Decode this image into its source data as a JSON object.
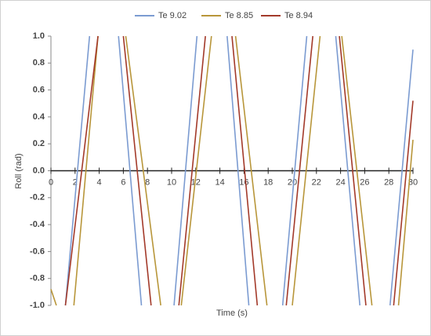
{
  "chart_data": {
    "type": "line",
    "xlabel": "Time (s)",
    "ylabel": "Roll (rad)",
    "xlim": [
      0,
      30
    ],
    "xticks": [
      0,
      2,
      4,
      6,
      8,
      10,
      12,
      14,
      16,
      18,
      20,
      22,
      24,
      26,
      28,
      30
    ],
    "ylim": [
      -1,
      1
    ],
    "yticks": [
      {
        "value": -1,
        "label": "-1.0"
      },
      -0.8,
      -0.6,
      -0.4,
      -0.2,
      {
        "value": 0,
        "label": "0.0"
      },
      0.2,
      0.4,
      0.6,
      0.8,
      {
        "value": 1,
        "label": "1.0"
      }
    ],
    "grid": false,
    "legend": "top",
    "series": [
      {
        "name": "Te 9.02",
        "color": "#7b9bd1",
        "x": [
          1.2,
          3.2,
          4.4,
          5.6,
          7.5,
          8.85,
          10.2,
          12.1,
          13.35,
          14.6,
          16.4,
          17.8,
          19.2,
          21.2,
          22.4,
          23.6,
          25.6,
          26.85,
          28.1,
          30
        ],
        "values": [
          -1,
          1,
          null,
          1,
          -1,
          null,
          -1,
          1,
          null,
          1,
          -1,
          null,
          -1,
          1,
          null,
          1,
          -1,
          null,
          -1,
          0.9
        ]
      },
      {
        "name": "Te 8.85",
        "color": "#b8963a",
        "x": [
          0,
          0.45,
          1.2,
          1.9,
          3.9,
          5.05,
          6.2,
          9.1,
          9.95,
          10.8,
          13.3,
          14.3,
          15.3,
          17.9,
          18.95,
          20,
          22.3,
          23.2,
          24.1,
          26.6,
          27.7,
          28.8,
          30
        ],
        "values": [
          -0.88,
          -1,
          null,
          -1,
          1,
          null,
          1,
          -1,
          null,
          -1,
          1,
          null,
          1,
          -1,
          null,
          -1,
          1,
          null,
          1,
          -1,
          null,
          -1,
          0.23
        ]
      },
      {
        "name": "Te 8.94",
        "color": "#a33a2a",
        "x": [
          1.2,
          3.9,
          4.95,
          6,
          8.3,
          9.45,
          10.6,
          12.8,
          13.9,
          15,
          17.1,
          18.3,
          19.5,
          21.7,
          22.8,
          23.9,
          26.1,
          27.25,
          28.4,
          30
        ],
        "values": [
          -1,
          1,
          null,
          1,
          -1,
          null,
          -1,
          1,
          null,
          1,
          -1,
          null,
          -1,
          1,
          null,
          1,
          -1,
          null,
          -1,
          0.52
        ]
      }
    ]
  }
}
